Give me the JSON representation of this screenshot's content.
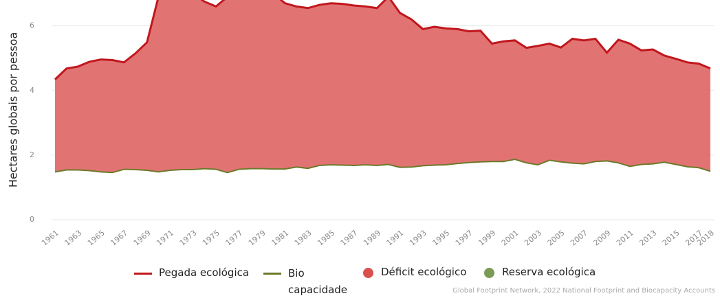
{
  "chart_data": {
    "type": "area",
    "y_label": "Hectares globais por pessoa",
    "source": "Global Footprint Network, 2022 National Footprint and Biocapacity Accounts",
    "categories": [
      "1961",
      null,
      "1963",
      null,
      "1965",
      null,
      "1967",
      null,
      "1969",
      null,
      "1971",
      null,
      "1973",
      null,
      "1975",
      null,
      "1977",
      null,
      "1979",
      null,
      "1981",
      null,
      "1983",
      null,
      "1985",
      null,
      "1987",
      null,
      "1989",
      null,
      "1991",
      null,
      "1993",
      null,
      "1995",
      null,
      "1997",
      null,
      "1999",
      null,
      "2001",
      null,
      "2003",
      null,
      "2005",
      null,
      "2007",
      null,
      "2009",
      null,
      "2011",
      null,
      "2013",
      null,
      "2015",
      null,
      "2017",
      "2018"
    ],
    "series": [
      {
        "name": "Pegada ecológica",
        "color": "#c0171d",
        "values": [
          4.34,
          4.68,
          4.74,
          4.89,
          4.96,
          4.94,
          4.87,
          5.15,
          5.49,
          6.9,
          7.1,
          7.2,
          7.0,
          6.75,
          6.6,
          6.9,
          7.0,
          7.1,
          7.1,
          7.0,
          6.7,
          6.6,
          6.55,
          6.65,
          6.7,
          6.68,
          6.63,
          6.6,
          6.55,
          6.9,
          6.4,
          6.2,
          5.9,
          5.97,
          5.92,
          5.9,
          5.83,
          5.85,
          5.45,
          5.52,
          5.55,
          5.32,
          5.38,
          5.45,
          5.33,
          5.6,
          5.55,
          5.6,
          5.17,
          5.57,
          5.45,
          5.24,
          5.27,
          5.08,
          4.98,
          4.87,
          4.83,
          4.68
        ]
      },
      {
        "name": "Bio capacidade",
        "color": "#6b7a2a",
        "values": [
          1.48,
          1.54,
          1.54,
          1.52,
          1.48,
          1.46,
          1.56,
          1.55,
          1.53,
          1.48,
          1.53,
          1.55,
          1.55,
          1.58,
          1.56,
          1.46,
          1.56,
          1.58,
          1.58,
          1.57,
          1.57,
          1.63,
          1.59,
          1.68,
          1.7,
          1.69,
          1.68,
          1.7,
          1.68,
          1.71,
          1.62,
          1.63,
          1.67,
          1.69,
          1.7,
          1.74,
          1.77,
          1.79,
          1.8,
          1.8,
          1.87,
          1.76,
          1.7,
          1.84,
          1.79,
          1.75,
          1.73,
          1.8,
          1.82,
          1.76,
          1.65,
          1.71,
          1.73,
          1.78,
          1.71,
          1.64,
          1.61,
          1.5
        ]
      }
    ],
    "areas": [
      {
        "name": "Déficit ecológico",
        "color": "#e06c6c",
        "marker_color": "#d9504e"
      },
      {
        "name": "Reserva ecológica",
        "color": "#8aa86a",
        "marker_color": "#7b9a55"
      }
    ],
    "ylim": [
      0,
      6.8
    ],
    "yticks": [
      0,
      2,
      4,
      6
    ],
    "grid": true
  }
}
